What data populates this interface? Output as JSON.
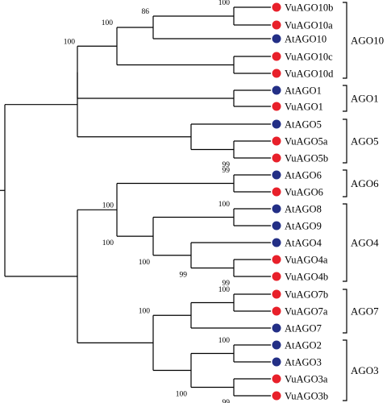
{
  "colors": {
    "vigna_marker": "#e8202a",
    "arabidopsis_marker": "#232f86",
    "line": "#000000"
  },
  "leaves": [
    {
      "label": "VuAGO10b",
      "species": "vigna"
    },
    {
      "label": "VuAGO10a",
      "species": "vigna"
    },
    {
      "label": "AtAGO10",
      "species": "arabidopsis"
    },
    {
      "label": "VuAGO10c",
      "species": "vigna"
    },
    {
      "label": "VuAGO10d",
      "species": "vigna"
    },
    {
      "label": "AtAGO1",
      "species": "arabidopsis"
    },
    {
      "label": "VuAGO1",
      "species": "vigna"
    },
    {
      "label": "AtAGO5",
      "species": "arabidopsis"
    },
    {
      "label": "VuAGO5a",
      "species": "vigna"
    },
    {
      "label": "VuAGO5b",
      "species": "vigna"
    },
    {
      "label": "AtAGO6",
      "species": "arabidopsis"
    },
    {
      "label": "VuAGO6",
      "species": "vigna"
    },
    {
      "label": "AtAGO8",
      "species": "arabidopsis"
    },
    {
      "label": "AtAGO9",
      "species": "arabidopsis"
    },
    {
      "label": "AtAGO4",
      "species": "arabidopsis"
    },
    {
      "label": "VuAGO4a",
      "species": "vigna"
    },
    {
      "label": "VuAGO4b",
      "species": "vigna"
    },
    {
      "label": "VuAGO7b",
      "species": "vigna"
    },
    {
      "label": "VuAGO7a",
      "species": "vigna"
    },
    {
      "label": "AtAGO7",
      "species": "arabidopsis"
    },
    {
      "label": "AtAGO2",
      "species": "arabidopsis"
    },
    {
      "label": "AtAGO3",
      "species": "arabidopsis"
    },
    {
      "label": "VuAGO3a",
      "species": "vigna"
    },
    {
      "label": "VuAGO3b",
      "species": "vigna"
    }
  ],
  "bootstrap_values": [
    "100",
    "86",
    "100",
    "100",
    "99",
    "99",
    "100",
    "99",
    "99",
    "100",
    "100",
    "100",
    "99"
  ],
  "clades": [
    "AGO10",
    "AGO1",
    "AGO5",
    "AGO6",
    "AGO4",
    "AGO7",
    "AGO3"
  ]
}
